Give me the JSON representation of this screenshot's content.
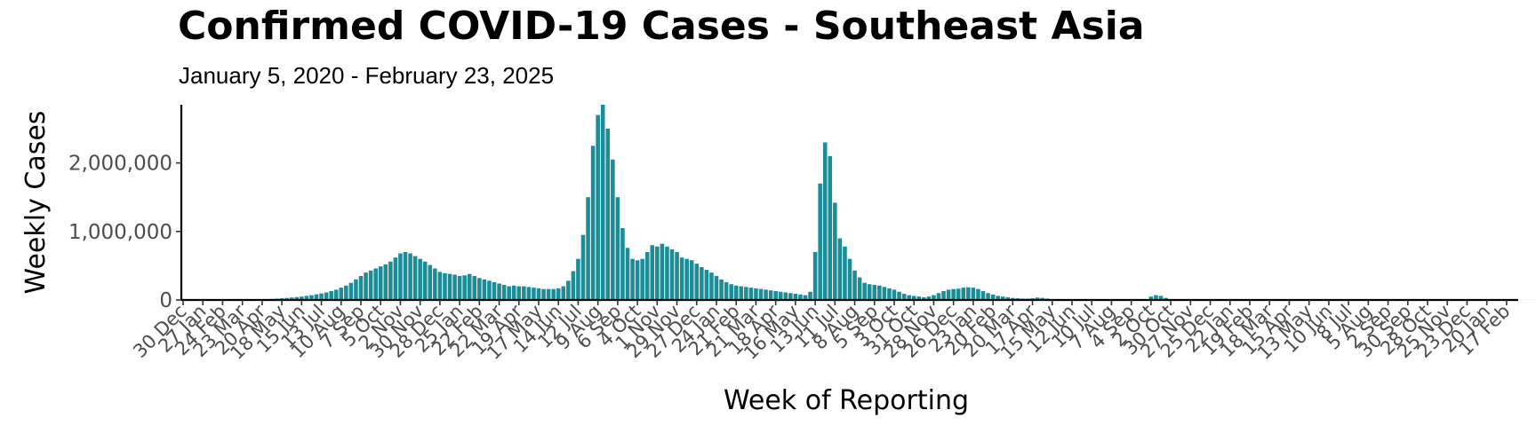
{
  "chart_data": {
    "type": "bar",
    "title": "Confirmed COVID-19 Cases - Southeast Asia",
    "subtitle": "January 5, 2020 - February 23, 2025",
    "xlabel": "Week of Reporting",
    "ylabel": "Weekly Cases",
    "x_start": "2020-01-05",
    "x_end": "2025-02-23",
    "ylim": [
      0,
      2850000
    ],
    "y_ticks": [
      0,
      1000000,
      2000000
    ],
    "y_tick_labels": [
      "0",
      "1,000,000",
      "2,000,000"
    ],
    "x_tick_labels": [
      "30 Dec",
      "27 Jan",
      "24 Feb",
      "23 Mar",
      "20 Apr",
      "18 May",
      "15 Jun",
      "13 Jul",
      "10 Aug",
      "7 Sep",
      "5 Oct",
      "2 Nov",
      "30 Nov",
      "28 Dec",
      "25 Jan",
      "22 Feb",
      "22 Mar",
      "19 Apr",
      "17 May",
      "14 Jun",
      "12 Jul",
      "9 Aug",
      "6 Sep",
      "4 Oct",
      "1 Nov",
      "29 Nov",
      "27 Dec",
      "24 Jan",
      "21 Feb",
      "21 Mar",
      "18 Apr",
      "16 May",
      "13 Jun",
      "11 Jul",
      "8 Aug",
      "5 Sep",
      "3 Oct",
      "31 Oct",
      "28 Nov",
      "26 Dec",
      "23 Jan",
      "20 Feb",
      "20 Mar",
      "17 Apr",
      "15 May",
      "12 Jun",
      "10 Jul",
      "7 Aug",
      "4 Sep",
      "2 Oct",
      "30 Oct",
      "27 Nov",
      "25 Dec",
      "22 Jan",
      "19 Feb",
      "18 Mar",
      "15 Apr",
      "13 May",
      "10 Jun",
      "8 Jul",
      "5 Aug",
      "2 Sep",
      "30 Sep",
      "28 Oct",
      "25 Nov",
      "23 Dec",
      "20 Jan",
      "17 Feb"
    ],
    "grid": false,
    "legend": "none",
    "bar_color": "#1c8c96",
    "values": [
      0,
      0,
      0,
      0,
      0,
      0,
      0,
      0,
      0,
      0,
      0,
      0,
      0,
      2000,
      4000,
      7000,
      10000,
      15000,
      20000,
      25000,
      30000,
      36000,
      43000,
      50000,
      60000,
      70000,
      82000,
      95000,
      110000,
      130000,
      150000,
      180000,
      210000,
      250000,
      300000,
      350000,
      400000,
      430000,
      460000,
      490000,
      520000,
      560000,
      620000,
      680000,
      700000,
      680000,
      640000,
      600000,
      560000,
      510000,
      460000,
      410000,
      390000,
      380000,
      370000,
      350000,
      360000,
      380000,
      350000,
      320000,
      300000,
      280000,
      260000,
      240000,
      220000,
      200000,
      210000,
      200000,
      200000,
      190000,
      180000,
      170000,
      160000,
      160000,
      160000,
      170000,
      200000,
      280000,
      420000,
      600000,
      950000,
      1500000,
      2250000,
      2700000,
      2850000,
      2500000,
      2050000,
      1500000,
      1050000,
      760000,
      600000,
      580000,
      600000,
      700000,
      800000,
      780000,
      820000,
      780000,
      740000,
      700000,
      620000,
      600000,
      580000,
      530000,
      480000,
      440000,
      400000,
      350000,
      300000,
      260000,
      230000,
      210000,
      200000,
      190000,
      180000,
      170000,
      160000,
      150000,
      140000,
      130000,
      120000,
      110000,
      100000,
      90000,
      80000,
      70000,
      120000,
      700000,
      1700000,
      2300000,
      2100000,
      1420000,
      900000,
      780000,
      600000,
      430000,
      330000,
      250000,
      230000,
      220000,
      210000,
      190000,
      170000,
      150000,
      120000,
      90000,
      70000,
      60000,
      50000,
      40000,
      50000,
      70000,
      100000,
      130000,
      150000,
      160000,
      165000,
      180000,
      185000,
      180000,
      160000,
      130000,
      100000,
      80000,
      60000,
      50000,
      40000,
      30000,
      25000,
      20000,
      20000,
      25000,
      35000,
      30000,
      20000,
      10000,
      5000,
      3000,
      2000,
      2000,
      1000,
      1000,
      1000,
      1000,
      1000,
      1000,
      1000,
      1000,
      1000,
      1000,
      1000,
      1000,
      2000,
      3000,
      5000,
      50000,
      70000,
      60000,
      30000,
      8000,
      3000,
      2000,
      1000,
      1000,
      1000,
      1000,
      1000,
      1000,
      1000,
      1000,
      1000,
      1000,
      1000,
      1000,
      1000,
      1000,
      1000,
      1000,
      1000,
      1000,
      1000,
      1000,
      1000,
      1000,
      1000,
      1000,
      1000,
      1000,
      1000,
      1000,
      1000,
      1000,
      1000,
      1000,
      1000,
      1000,
      1000,
      1000,
      1000,
      1000,
      1000,
      1000,
      1000,
      1000,
      1000,
      1000,
      1000,
      1000,
      1000,
      1000,
      1000,
      1000,
      1000,
      1000,
      1000,
      1000,
      1000,
      1000,
      1000,
      1000,
      1000,
      1000,
      1000,
      1000,
      1000,
      1000,
      1000,
      1000,
      1000,
      1000,
      1000,
      1000,
      1000,
      1000,
      1000,
      1000,
      1000,
      1000,
      1000,
      1000,
      1000,
      1000,
      1000,
      1000,
      1000,
      1000,
      1000,
      1000,
      1000,
      1000,
      1000,
      1000,
      1000,
      1000
    ]
  }
}
